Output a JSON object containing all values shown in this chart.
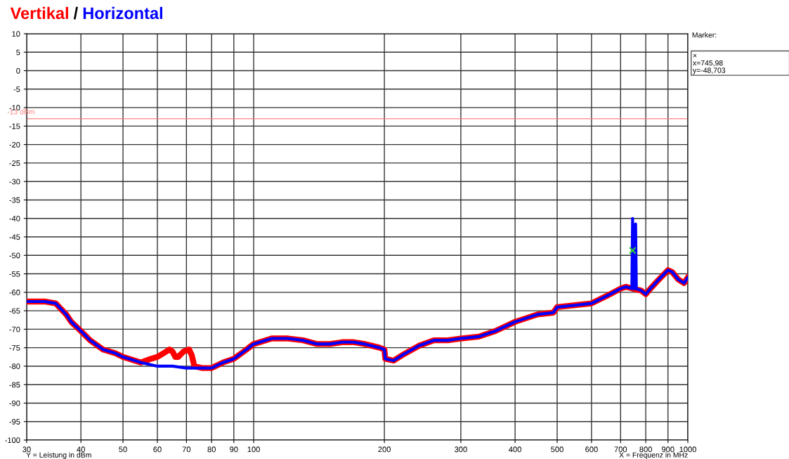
{
  "chart_data": {
    "type": "line",
    "xlabel": "X = Frequenz in MHz",
    "log": "x",
    "xlim": [
      30,
      1000
    ],
    "ylim": [
      -100,
      10
    ],
    "xticks": [
      30,
      40,
      50,
      60,
      70,
      80,
      90,
      100,
      200,
      300,
      400,
      500,
      600,
      700,
      800,
      900,
      1000
    ],
    "yticks": [
      10,
      5,
      0,
      -5,
      -10,
      -15,
      -20,
      -25,
      -30,
      -35,
      -40,
      -45,
      -50,
      -55,
      -60,
      -65,
      -70,
      -75,
      -80,
      -85,
      -90,
      -95,
      -100
    ],
    "grid": true,
    "legend": "top left",
    "line_style": "solid",
    "marker": "none",
    "ref_lines": [
      {
        "axis": "y",
        "value": -13,
        "label": "-13 dBm",
        "color": "#ff8080",
        "line_style": "solid"
      }
    ],
    "annotations": [
      "/",
      "Marker:",
      "×\nx=745,98\ny=-48,703",
      "Y = Leistung in dBm"
    ],
    "series": [
      {
        "name": "Vertikal",
        "color": "#ff0000",
        "x": [
          30,
          33,
          35,
          37,
          38,
          40,
          42,
          45,
          48,
          50,
          55,
          58,
          60,
          62,
          64,
          65,
          66,
          67,
          69,
          71,
          72,
          73,
          76,
          80,
          85,
          90,
          95,
          100,
          110,
          120,
          130,
          140,
          150,
          160,
          170,
          180,
          195,
          200,
          201,
          210,
          220,
          240,
          260,
          280,
          300,
          330,
          360,
          400,
          450,
          490,
          500,
          550,
          600,
          650,
          700,
          720,
          746,
          780,
          800,
          820,
          850,
          900,
          920,
          950,
          980,
          1000
        ],
        "values": [
          -62.5,
          -62.5,
          -63,
          -66,
          -68,
          -70.5,
          -73,
          -75.5,
          -76.5,
          -77.5,
          -79,
          -78,
          -77.5,
          -76.5,
          -75.5,
          -76,
          -77.5,
          -77.5,
          -76,
          -75.5,
          -77,
          -80,
          -80.5,
          -80.5,
          -79,
          -78,
          -76,
          -74,
          -72.5,
          -72.5,
          -73,
          -74,
          -74,
          -73.5,
          -73.5,
          -74,
          -75,
          -75.5,
          -78,
          -78.5,
          -77,
          -74.5,
          -73,
          -73,
          -72.5,
          -72,
          -70.5,
          -68,
          -66,
          -65.5,
          -64,
          -63.5,
          -63,
          -61,
          -59,
          -58.5,
          -59,
          -59.5,
          -60.5,
          -59,
          -57,
          -54,
          -54.5,
          -56.5,
          -57.5,
          -56
        ]
      },
      {
        "name": "Horizontal",
        "color": "#0000ff",
        "x": [
          30,
          33,
          35,
          37,
          38,
          40,
          42,
          45,
          48,
          50,
          55,
          60,
          65,
          70,
          76,
          80,
          85,
          90,
          95,
          100,
          110,
          120,
          130,
          140,
          150,
          160,
          170,
          180,
          195,
          200,
          201,
          210,
          220,
          240,
          260,
          280,
          300,
          330,
          360,
          400,
          450,
          490,
          500,
          550,
          600,
          650,
          700,
          720,
          743,
          745.98,
          749,
          756,
          758,
          761,
          780,
          800,
          820,
          850,
          900,
          920,
          950,
          980,
          1000
        ],
        "values": [
          -62.5,
          -62.5,
          -63,
          -66,
          -68,
          -70.5,
          -73,
          -75.5,
          -76.5,
          -77.5,
          -79,
          -80,
          -80,
          -80.5,
          -80.5,
          -80.5,
          -79,
          -78,
          -76,
          -74,
          -72.5,
          -72.5,
          -73,
          -74,
          -74,
          -73.5,
          -73.5,
          -74,
          -75,
          -75.5,
          -78,
          -78.5,
          -77,
          -74.5,
          -73,
          -73,
          -72.5,
          -72,
          -70.5,
          -68,
          -66,
          -65.5,
          -64,
          -63.5,
          -63,
          -61,
          -59,
          -58.5,
          -59,
          -40,
          -59,
          -59,
          -41.5,
          -59,
          -59.5,
          -60.5,
          -59,
          -57,
          -54,
          -54.5,
          -56.5,
          -57.5,
          -56
        ]
      },
      {
        "type": "scatter",
        "color": "#33cc33",
        "marker": "cross",
        "x": [
          745.98
        ],
        "values": [
          -48.7
        ]
      }
    ]
  }
}
